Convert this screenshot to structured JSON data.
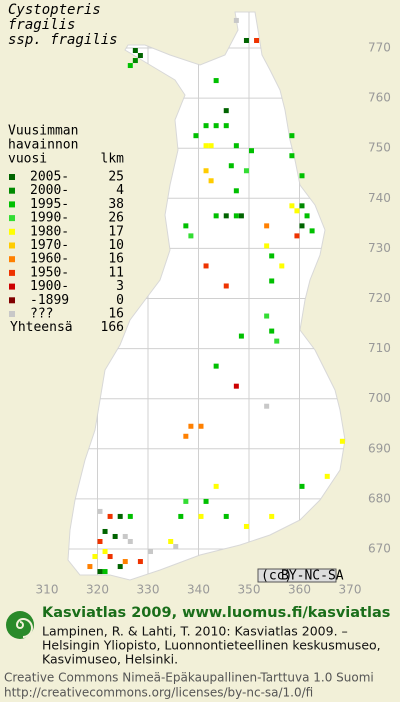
{
  "title": [
    "Cystopteris",
    "fragilis",
    "ssp. fragilis"
  ],
  "legend": {
    "header": [
      "Vuusimman",
      "havainnon",
      "vuosi"
    ],
    "count_header": "lkm",
    "entries": [
      {
        "label": "2005-",
        "count": 25,
        "color": "#006400"
      },
      {
        "label": "2000-",
        "count": 4,
        "color": "#008a00"
      },
      {
        "label": "1995-",
        "count": 38,
        "color": "#00c000"
      },
      {
        "label": "1990-",
        "count": 26,
        "color": "#33dd33"
      },
      {
        "label": "1980-",
        "count": 17,
        "color": "#ffff00"
      },
      {
        "label": "1970-",
        "count": 10,
        "color": "#ffcc00"
      },
      {
        "label": "1960-",
        "count": 16,
        "color": "#ff8000"
      },
      {
        "label": "1950-",
        "count": 11,
        "color": "#ee3300"
      },
      {
        "label": "1900-",
        "count": 3,
        "color": "#cc0000"
      },
      {
        "label": "-1899",
        "count": 0,
        "color": "#800000"
      },
      {
        "label": "???",
        "count": 16,
        "color": "#c8c8c8"
      }
    ],
    "total_label": "Yhteensä",
    "total": 166
  },
  "map": {
    "xticks": [
      310,
      320,
      330,
      340,
      350,
      360,
      370
    ],
    "yticks": [
      670,
      680,
      690,
      700,
      710,
      720,
      730,
      740,
      750,
      760,
      770
    ]
  },
  "observations": [
    {
      "e": 347,
      "n": 775,
      "period": "???"
    },
    {
      "e": 349,
      "n": 771,
      "period": "2005-"
    },
    {
      "e": 351,
      "n": 771,
      "period": "1950-"
    },
    {
      "e": 327,
      "n": 769,
      "period": "2005-"
    },
    {
      "e": 328,
      "n": 768,
      "period": "2005-"
    },
    {
      "e": 327,
      "n": 767,
      "period": "2000-"
    },
    {
      "e": 326,
      "n": 766,
      "period": "1995-"
    },
    {
      "e": 343,
      "n": 763,
      "period": "1995-"
    },
    {
      "e": 345,
      "n": 757,
      "period": "2005-"
    },
    {
      "e": 343,
      "n": 754,
      "period": "1995-"
    },
    {
      "e": 341,
      "n": 754,
      "period": "1995-"
    },
    {
      "e": 345,
      "n": 754,
      "period": "1995-"
    },
    {
      "e": 339,
      "n": 752,
      "period": "1995-"
    },
    {
      "e": 341,
      "n": 750,
      "period": "1980-"
    },
    {
      "e": 342,
      "n": 750,
      "period": "1980-"
    },
    {
      "e": 347,
      "n": 750,
      "period": "1995-"
    },
    {
      "e": 350,
      "n": 749,
      "period": "1995-"
    },
    {
      "e": 341,
      "n": 745,
      "period": "1970-"
    },
    {
      "e": 342,
      "n": 743,
      "period": "1970-"
    },
    {
      "e": 346,
      "n": 746,
      "period": "1995-"
    },
    {
      "e": 349,
      "n": 745,
      "period": "1990-"
    },
    {
      "e": 347,
      "n": 741,
      "period": "1995-"
    },
    {
      "e": 358,
      "n": 752,
      "period": "1995-"
    },
    {
      "e": 358,
      "n": 748,
      "period": "1995-"
    },
    {
      "e": 360,
      "n": 744,
      "period": "1995-"
    },
    {
      "e": 358,
      "n": 738,
      "period": "1980-"
    },
    {
      "e": 359,
      "n": 737,
      "period": "1980-"
    },
    {
      "e": 360,
      "n": 738,
      "period": "2000-"
    },
    {
      "e": 361,
      "n": 736,
      "period": "1995-"
    },
    {
      "e": 360,
      "n": 734,
      "period": "2005-"
    },
    {
      "e": 362,
      "n": 733,
      "period": "1995-"
    },
    {
      "e": 343,
      "n": 736,
      "period": "1995-"
    },
    {
      "e": 345,
      "n": 736,
      "period": "2005-"
    },
    {
      "e": 347,
      "n": 736,
      "period": "1995-"
    },
    {
      "e": 348,
      "n": 736,
      "period": "2005-"
    },
    {
      "e": 337,
      "n": 734,
      "period": "1995-"
    },
    {
      "e": 338,
      "n": 732,
      "period": "1990-"
    },
    {
      "e": 353,
      "n": 734,
      "period": "1960-"
    },
    {
      "e": 353,
      "n": 730,
      "period": "1980-"
    },
    {
      "e": 354,
      "n": 728,
      "period": "1995-"
    },
    {
      "e": 359,
      "n": 732,
      "period": "1950-"
    },
    {
      "e": 356,
      "n": 726,
      "period": "1980-"
    },
    {
      "e": 354,
      "n": 723,
      "period": "1995-"
    },
    {
      "e": 341,
      "n": 726,
      "period": "1950-"
    },
    {
      "e": 345,
      "n": 722,
      "period": "1950-"
    },
    {
      "e": 353,
      "n": 716,
      "period": "1990-"
    },
    {
      "e": 354,
      "n": 713,
      "period": "1995-"
    },
    {
      "e": 355,
      "n": 711,
      "period": "1990-"
    },
    {
      "e": 348,
      "n": 712,
      "period": "1995-"
    },
    {
      "e": 343,
      "n": 706,
      "period": "1995-"
    },
    {
      "e": 347,
      "n": 702,
      "period": "1900-"
    },
    {
      "e": 353,
      "n": 698,
      "period": "???"
    },
    {
      "e": 338,
      "n": 694,
      "period": "1960-"
    },
    {
      "e": 340,
      "n": 694,
      "period": "1960-"
    },
    {
      "e": 337,
      "n": 692,
      "period": "1960-"
    },
    {
      "e": 368,
      "n": 691,
      "period": "1980-"
    },
    {
      "e": 365,
      "n": 684,
      "period": "1980-"
    },
    {
      "e": 360,
      "n": 682,
      "period": "1995-"
    },
    {
      "e": 343,
      "n": 682,
      "period": "1980-"
    },
    {
      "e": 341,
      "n": 679,
      "period": "1995-"
    },
    {
      "e": 337,
      "n": 679,
      "period": "1990-"
    },
    {
      "e": 336,
      "n": 676,
      "period": "1995-"
    },
    {
      "e": 340,
      "n": 676,
      "period": "1980-"
    },
    {
      "e": 345,
      "n": 676,
      "period": "1995-"
    },
    {
      "e": 354,
      "n": 676,
      "period": "1980-"
    },
    {
      "e": 349,
      "n": 674,
      "period": "1980-"
    },
    {
      "e": 320,
      "n": 677,
      "period": "???"
    },
    {
      "e": 322,
      "n": 676,
      "period": "1950-"
    },
    {
      "e": 324,
      "n": 676,
      "period": "2005-"
    },
    {
      "e": 326,
      "n": 676,
      "period": "1995-"
    },
    {
      "e": 321,
      "n": 673,
      "period": "2005-"
    },
    {
      "e": 323,
      "n": 672,
      "period": "2005-"
    },
    {
      "e": 325,
      "n": 672,
      "period": "???"
    },
    {
      "e": 320,
      "n": 671,
      "period": "1950-"
    },
    {
      "e": 326,
      "n": 671,
      "period": "???"
    },
    {
      "e": 321,
      "n": 669,
      "period": "1980-"
    },
    {
      "e": 319,
      "n": 668,
      "period": "1980-"
    },
    {
      "e": 322,
      "n": 668,
      "period": "1950-"
    },
    {
      "e": 325,
      "n": 667,
      "period": "1960-"
    },
    {
      "e": 328,
      "n": 667,
      "period": "1950-"
    },
    {
      "e": 330,
      "n": 669,
      "period": "???"
    },
    {
      "e": 334,
      "n": 671,
      "period": "1980-"
    },
    {
      "e": 335,
      "n": 670,
      "period": "???"
    },
    {
      "e": 324,
      "n": 666,
      "period": "2005-"
    },
    {
      "e": 318,
      "n": 666,
      "period": "1960-"
    },
    {
      "e": 320,
      "n": 665,
      "period": "2005-"
    },
    {
      "e": 321,
      "n": 665,
      "period": "1995-"
    }
  ],
  "license_badge": [
    "(cc)",
    "BY-NC-SA"
  ],
  "footer": {
    "heading": "Kasviatlas 2009, www.luomus.fi/kasviatlas",
    "citation": [
      "Lampinen, R. & Lahti, T. 2010: Kasviatlas 2009. –",
      "Helsingin Yliopisto, Luonnontieteellinen keskusmuseo,",
      "Kasvimuseo, Helsinki."
    ],
    "license": [
      "Creative Commons Nimeä-Epäkaupallinen-Tarttuva 1.0 Suomi",
      "http://creativecommons.org/licenses/by-nc-sa/1.0/fi"
    ]
  }
}
